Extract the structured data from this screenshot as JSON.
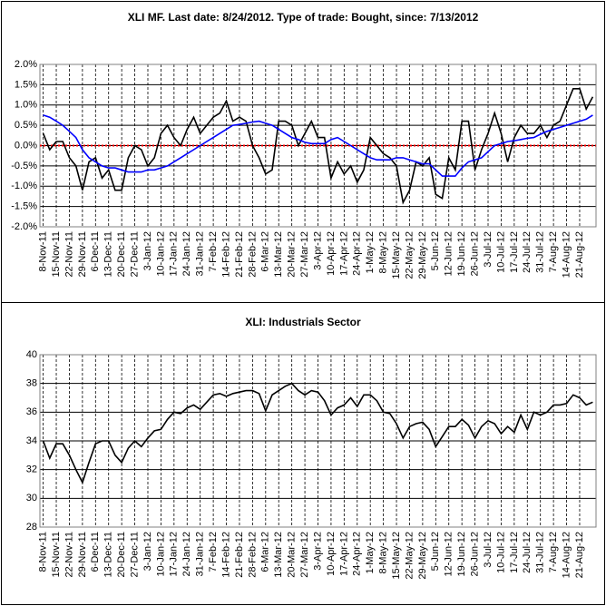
{
  "chart_data": [
    {
      "type": "line",
      "title": "XLI MF. Last date: 8/24/2012. Type of trade: Bought, since: 7/13/2012",
      "categories": [
        "8-Nov-11",
        null,
        "15-Nov-11",
        null,
        "22-Nov-11",
        null,
        "29-Nov-11",
        null,
        "6-Dec-11",
        null,
        "13-Dec-11",
        null,
        "20-Dec-11",
        null,
        "27-Dec-11",
        null,
        "3-Jan-12",
        null,
        "10-Jan-12",
        null,
        "17-Jan-12",
        null,
        "24-Jan-12",
        null,
        "31-Jan-12",
        null,
        "7-Feb-12",
        null,
        "14-Feb-12",
        null,
        "21-Feb-12",
        null,
        "28-Feb-12",
        null,
        "6-Mar-12",
        null,
        "13-Mar-12",
        null,
        "20-Mar-12",
        null,
        "27-Mar-12",
        null,
        "3-Apr-12",
        null,
        "10-Apr-12",
        null,
        "17-Apr-12",
        null,
        "24-Apr-12",
        null,
        "1-May-12",
        null,
        "8-May-12",
        null,
        "15-May-12",
        null,
        "22-May-12",
        null,
        "29-May-12",
        null,
        "5-Jun-12",
        null,
        "12-Jun-12",
        null,
        "19-Jun-12",
        null,
        "26-Jun-12",
        null,
        "3-Jul-12",
        null,
        "10-Jul-12",
        null,
        "17-Jul-12",
        null,
        "24-Jul-12",
        null,
        "31-Jul-12",
        null,
        "7-Aug-12",
        null,
        "14-Aug-12",
        null,
        "21-Aug-12",
        null,
        null
      ],
      "series": [
        {
          "color": "#000000",
          "values": [
            0.3,
            -0.1,
            0.1,
            0.1,
            -0.3,
            -0.5,
            -1.1,
            -0.4,
            -0.3,
            -0.8,
            -0.6,
            -1.1,
            -1.1,
            -0.3,
            0.0,
            -0.1,
            -0.5,
            -0.3,
            0.3,
            0.5,
            0.2,
            0.0,
            0.4,
            0.7,
            0.3,
            0.5,
            0.7,
            0.8,
            1.1,
            0.6,
            0.7,
            0.6,
            0.0,
            -0.3,
            -0.7,
            -0.6,
            0.6,
            0.6,
            0.5,
            0.0,
            0.3,
            0.6,
            0.2,
            0.2,
            -0.8,
            -0.4,
            -0.7,
            -0.5,
            -0.9,
            -0.6,
            0.2,
            0.0,
            -0.2,
            -0.3,
            -0.5,
            -1.4,
            -1.1,
            -0.4,
            -0.5,
            -0.3,
            -1.2,
            -1.3,
            -0.3,
            -0.6,
            0.6,
            0.6,
            -0.6,
            -0.1,
            0.3,
            0.8,
            0.3,
            -0.4,
            0.2,
            0.5,
            0.3,
            0.3,
            0.5,
            0.2,
            0.5,
            0.6,
            1.0,
            1.4,
            1.4,
            0.9,
            1.2
          ]
        },
        {
          "color": "#0000ff",
          "values": [
            0.75,
            0.7,
            0.6,
            0.5,
            0.35,
            0.2,
            -0.1,
            -0.3,
            -0.4,
            -0.5,
            -0.55,
            -0.55,
            -0.6,
            -0.65,
            -0.65,
            -0.65,
            -0.6,
            -0.6,
            -0.55,
            -0.5,
            -0.4,
            -0.3,
            -0.2,
            -0.1,
            0.0,
            0.1,
            0.2,
            0.3,
            0.4,
            0.5,
            0.52,
            0.55,
            0.58,
            0.6,
            0.55,
            0.5,
            0.4,
            0.3,
            0.2,
            0.15,
            0.08,
            0.05,
            0.05,
            0.05,
            0.15,
            0.2,
            0.1,
            0.0,
            -0.1,
            -0.2,
            -0.3,
            -0.35,
            -0.35,
            -0.35,
            -0.3,
            -0.3,
            -0.35,
            -0.4,
            -0.45,
            -0.45,
            -0.6,
            -0.75,
            -0.75,
            -0.75,
            -0.55,
            -0.4,
            -0.35,
            -0.3,
            -0.15,
            0.0,
            0.05,
            0.1,
            0.12,
            0.15,
            0.18,
            0.2,
            0.28,
            0.35,
            0.4,
            0.45,
            0.5,
            0.55,
            0.6,
            0.65,
            0.75
          ]
        }
      ],
      "ylim": [
        -2,
        2
      ],
      "yticks": [
        {
          "value": -2,
          "label": "-2.0%"
        },
        {
          "value": -1.5,
          "label": "-1.5%"
        },
        {
          "value": -1,
          "label": "-1.0%"
        },
        {
          "value": -0.5,
          "label": "-0.5%"
        },
        {
          "value": 0,
          "label": "0.0%"
        },
        {
          "value": 0.5,
          "label": "0.5%"
        },
        {
          "value": 1,
          "label": "1.0%"
        },
        {
          "value": 1.5,
          "label": "1.5%"
        },
        {
          "value": 2,
          "label": "2.0%"
        }
      ],
      "zero_line": {
        "value": 0,
        "color": "#ff0000"
      },
      "grid": true
    },
    {
      "type": "line",
      "title": "XLI: Industrials Sector",
      "categories": [
        "8-Nov-11",
        null,
        "15-Nov-11",
        null,
        "22-Nov-11",
        null,
        "29-Nov-11",
        null,
        "6-Dec-11",
        null,
        "13-Dec-11",
        null,
        "20-Dec-11",
        null,
        "27-Dec-11",
        null,
        "3-Jan-12",
        null,
        "10-Jan-12",
        null,
        "17-Jan-12",
        null,
        "24-Jan-12",
        null,
        "31-Jan-12",
        null,
        "7-Feb-12",
        null,
        "14-Feb-12",
        null,
        "21-Feb-12",
        null,
        "28-Feb-12",
        null,
        "6-Mar-12",
        null,
        "13-Mar-12",
        null,
        "20-Mar-12",
        null,
        "27-Mar-12",
        null,
        "3-Apr-12",
        null,
        "10-Apr-12",
        null,
        "17-Apr-12",
        null,
        "24-Apr-12",
        null,
        "1-May-12",
        null,
        "8-May-12",
        null,
        "15-May-12",
        null,
        "22-May-12",
        null,
        "29-May-12",
        null,
        "5-Jun-12",
        null,
        "12-Jun-12",
        null,
        "19-Jun-12",
        null,
        "26-Jun-12",
        null,
        "3-Jul-12",
        null,
        "10-Jul-12",
        null,
        "17-Jul-12",
        null,
        "24-Jul-12",
        null,
        "31-Jul-12",
        null,
        "7-Aug-12",
        null,
        "14-Aug-12",
        null,
        "21-Aug-12",
        null,
        null
      ],
      "series": [
        {
          "color": "#000000",
          "values": [
            34.0,
            32.8,
            33.8,
            33.8,
            33.0,
            32.0,
            31.1,
            32.5,
            33.8,
            34.0,
            34.0,
            33.0,
            32.5,
            33.5,
            34.0,
            33.6,
            34.2,
            34.7,
            34.8,
            35.5,
            36.0,
            35.9,
            36.3,
            36.5,
            36.2,
            36.7,
            37.2,
            37.3,
            37.1,
            37.3,
            37.4,
            37.5,
            37.5,
            37.3,
            36.1,
            37.2,
            37.5,
            37.8,
            38.0,
            37.5,
            37.2,
            37.5,
            37.4,
            36.8,
            35.8,
            36.3,
            36.5,
            37.0,
            36.4,
            37.2,
            37.2,
            36.8,
            36.0,
            35.9,
            35.2,
            34.2,
            35.0,
            35.2,
            35.3,
            34.8,
            33.6,
            34.3,
            35.0,
            35.0,
            35.5,
            35.1,
            34.2,
            35.0,
            35.4,
            35.2,
            34.5,
            35.0,
            34.6,
            35.8,
            34.8,
            36.0,
            35.8,
            36.0,
            36.5,
            36.5,
            36.6,
            37.2,
            37.0,
            36.5,
            36.7
          ]
        }
      ],
      "ylim": [
        28,
        40
      ],
      "yticks": [
        28,
        30,
        32,
        34,
        36,
        38,
        40
      ],
      "grid": true
    }
  ]
}
